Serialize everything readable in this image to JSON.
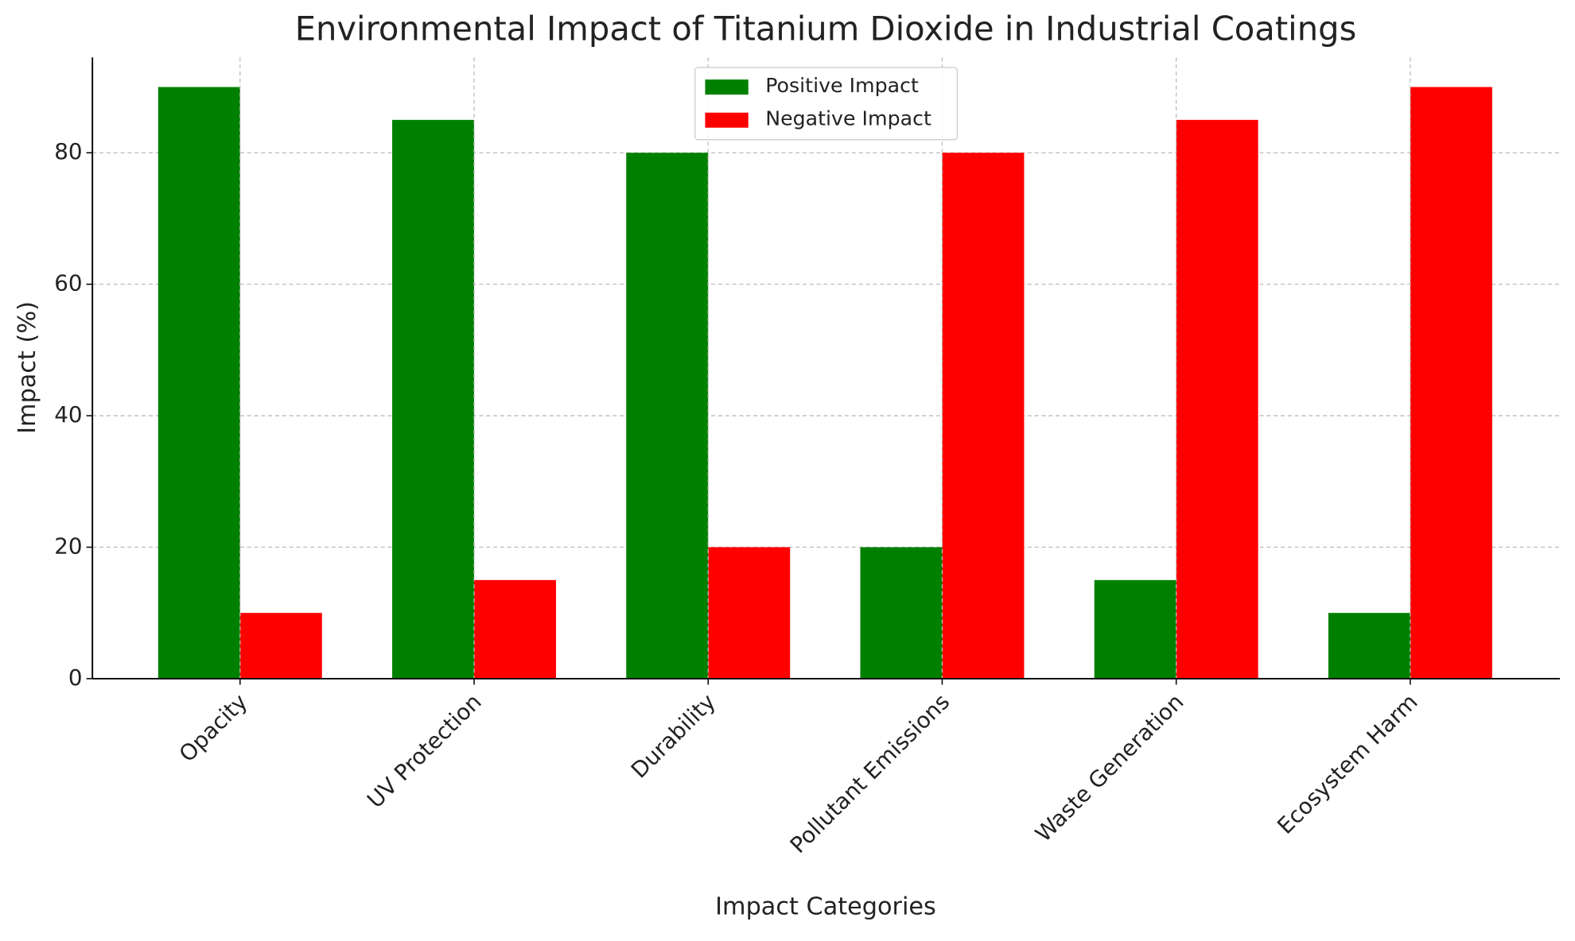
{
  "chart_data": {
    "type": "bar",
    "title": "Environmental Impact of Titanium Dioxide in Industrial Coatings",
    "x_label": "Impact Categories",
    "y_label": "Impact (%)",
    "categories": [
      "Opacity",
      "UV Protection",
      "Durability",
      "Pollutant Emissions",
      "Waste Generation",
      "Ecosystem Harm"
    ],
    "series": [
      {
        "name": "Positive Impact",
        "color": "#008000",
        "values": [
          90,
          85,
          80,
          20,
          15,
          10
        ]
      },
      {
        "name": "Negative Impact",
        "color": "#ff0000",
        "values": [
          10,
          15,
          20,
          80,
          85,
          90
        ]
      }
    ],
    "ylim": [
      0,
      94.5
    ],
    "yticks": [
      0,
      20,
      40,
      60,
      80
    ],
    "grid": true,
    "legend": "upper center"
  }
}
